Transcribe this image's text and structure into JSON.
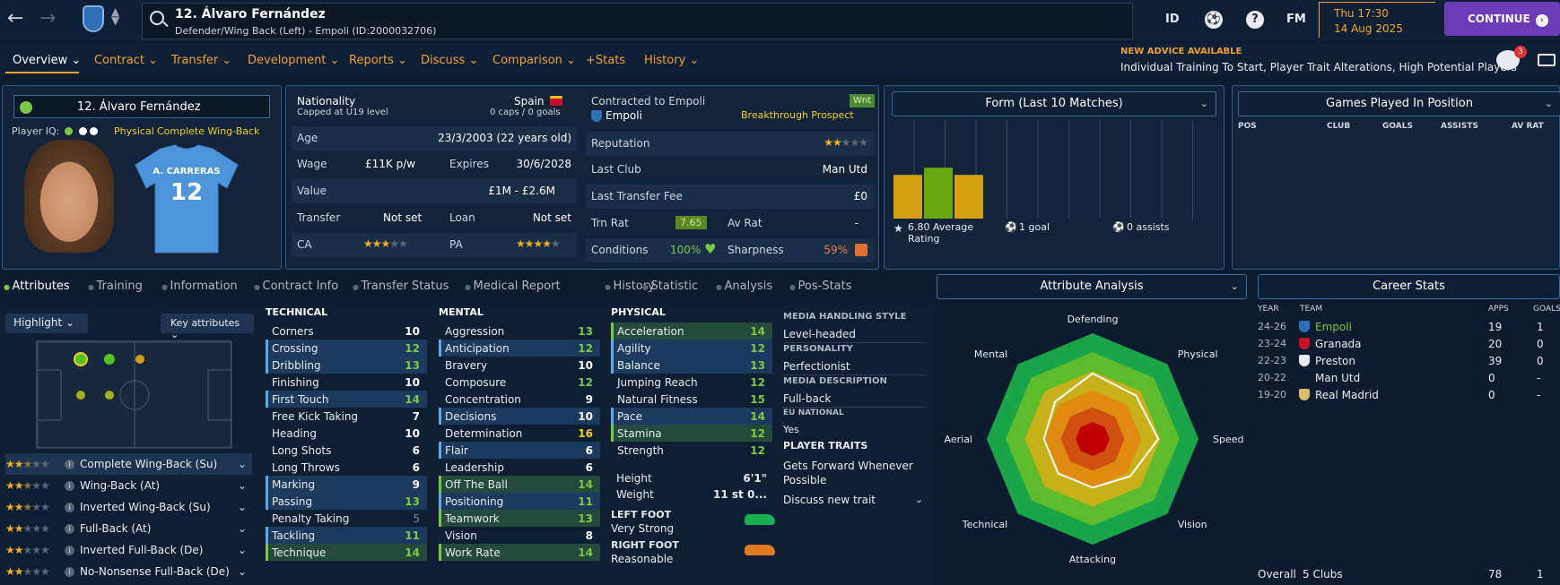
{
  "topbar": {
    "title": "12. Álvaro Fernández",
    "subtitle": "Defender/Wing Back (Left) - Empoli (ID:2000032706)",
    "id_label": "ID",
    "fm_label": "FM",
    "help_label": "?",
    "time": "Thu 17:30",
    "date": "14 Aug 2025",
    "continue_label": "CONTINUE"
  },
  "tabs": [
    "Overview",
    "Contract",
    "Transfer",
    "Development",
    "Reports",
    "Discuss",
    "Comparison",
    "+Stats",
    "History"
  ],
  "advice": {
    "title": "NEW ADVICE AVAILABLE",
    "text": "Individual Training To Start, Player Trait Alterations, High Potential Players",
    "badge": "3"
  },
  "profile": {
    "name": "12. Álvaro Fernández",
    "iq_label": "Player IQ:",
    "role_tag": "Physical",
    "role": "Complete Wing-Back",
    "shirt_name": "A. CARRERAS",
    "shirt_number": "12"
  },
  "info": {
    "nationality_label": "Nationality",
    "nationality": "Spain",
    "caps_note": "Capped at U19 level",
    "caps": "0 caps / 0 goals",
    "contract_label": "Contracted to Empoli",
    "club": "Empoli",
    "status": "Breakthrough Prospect",
    "wnt": "Wnt",
    "age_label": "Age",
    "age": "23/3/2003 (22 years old)",
    "wage_label": "Wage",
    "wage": "£11K p/w",
    "expires_label": "Expires",
    "expires": "30/6/2028",
    "value_label": "Value",
    "value": "£1M - £2.6M",
    "transfer_label": "Transfer",
    "transfer": "Not set",
    "loan_label": "Loan",
    "loan": "Not set",
    "ca_label": "CA",
    "pa_label": "PA",
    "reputation_label": "Reputation",
    "lastclub_label": "Last Club",
    "lastclub": "Man Utd",
    "fee_label": "Last Transfer Fee",
    "fee": "£0",
    "trn_label": "Trn Rat",
    "trn": "7.65",
    "avr_label": "Av Rat",
    "avr": "-",
    "cond_label": "Conditions",
    "cond": "100%",
    "sharp_label": "Sharpness",
    "sharp": "59%"
  },
  "form": {
    "title": "Form (Last 10 Matches)",
    "avg": "6.80 Average Rating",
    "goals": "1 goal",
    "assists": "0 assists",
    "bars": [
      {
        "value": 6.8,
        "color": "#d4a010"
      },
      {
        "value": 7.3,
        "color": "#6aa810"
      },
      {
        "value": 6.8,
        "color": "#d4a010"
      }
    ]
  },
  "gpp": {
    "title": "Games Played In Position",
    "cols": [
      "POS",
      "CLUB",
      "GOALS",
      "ASSISTS",
      "AV RAT"
    ]
  },
  "subtabs": [
    "Attributes",
    "Training",
    "Information",
    "Contract Info",
    "Transfer Status",
    "Medical Report",
    "History",
    "Statistic",
    "Analysis",
    "Pos-Stats"
  ],
  "left": {
    "highlight": "Highlight",
    "key_attrs": "Key attributes",
    "roles": [
      {
        "name": "Complete Wing-Back (Su)",
        "stars": 2.5
      },
      {
        "name": "Wing-Back (At)",
        "stars": 2.5
      },
      {
        "name": "Inverted Wing-Back (Su)",
        "stars": 2.5
      },
      {
        "name": "Full-Back (At)",
        "stars": 2
      },
      {
        "name": "Inverted Full-Back (De)",
        "stars": 2
      },
      {
        "name": "No-Nonsense Full-Back (De)",
        "stars": 2
      }
    ]
  },
  "technical": {
    "title": "TECHNICAL",
    "rows": [
      [
        "Corners",
        "10",
        ""
      ],
      [
        "Crossing",
        "12",
        "b"
      ],
      [
        "Dribbling",
        "13",
        "b"
      ],
      [
        "Finishing",
        "10",
        ""
      ],
      [
        "First Touch",
        "14",
        "b"
      ],
      [
        "Free Kick Taking",
        "7",
        ""
      ],
      [
        "Heading",
        "10",
        ""
      ],
      [
        "Long Shots",
        "6",
        ""
      ],
      [
        "Long Throws",
        "6",
        ""
      ],
      [
        "Marking",
        "9",
        "b"
      ],
      [
        "Passing",
        "13",
        "b"
      ],
      [
        "Penalty Taking",
        "5",
        ""
      ],
      [
        "Tackling",
        "11",
        "b"
      ],
      [
        "Technique",
        "14",
        "g"
      ]
    ]
  },
  "mental": {
    "title": "MENTAL",
    "rows": [
      [
        "Aggression",
        "13",
        ""
      ],
      [
        "Anticipation",
        "12",
        "b"
      ],
      [
        "Bravery",
        "10",
        ""
      ],
      [
        "Composure",
        "12",
        ""
      ],
      [
        "Concentration",
        "9",
        ""
      ],
      [
        "Decisions",
        "10",
        "b"
      ],
      [
        "Determination",
        "16",
        ""
      ],
      [
        "Flair",
        "6",
        "b"
      ],
      [
        "Leadership",
        "6",
        ""
      ],
      [
        "Off The Ball",
        "14",
        "g"
      ],
      [
        "Positioning",
        "11",
        "b"
      ],
      [
        "Teamwork",
        "13",
        "g"
      ],
      [
        "Vision",
        "8",
        ""
      ],
      [
        "Work Rate",
        "14",
        "g"
      ]
    ]
  },
  "physical": {
    "title": "PHYSICAL",
    "rows": [
      [
        "Acceleration",
        "14",
        "g"
      ],
      [
        "Agility",
        "12",
        "b"
      ],
      [
        "Balance",
        "13",
        "b"
      ],
      [
        "Jumping Reach",
        "12",
        ""
      ],
      [
        "Natural Fitness",
        "15",
        ""
      ],
      [
        "Pace",
        "14",
        "b"
      ],
      [
        "Stamina",
        "12",
        "g"
      ],
      [
        "Strength",
        "12",
        ""
      ]
    ],
    "height_label": "Height",
    "height": "6'1\"",
    "weight_label": "Weight",
    "weight": "11 st 0...",
    "lf_label": "LEFT FOOT",
    "lf": "Very Strong",
    "rf_label": "RIGHT FOOT",
    "rf": "Reasonable"
  },
  "media": {
    "style_label": "MEDIA HANDLING STYLE",
    "style": "Level-headed",
    "pers_label": "PERSONALITY",
    "pers": "Perfectionist",
    "desc_label": "MEDIA DESCRIPTION",
    "desc": "Full-back",
    "eu_label": "EU NATIONAL",
    "eu": "Yes",
    "traits_label": "PLAYER TRAITS",
    "trait1": "Gets Forward Whenever Possible",
    "discuss": "Discuss new trait"
  },
  "analysis": {
    "title": "Attribute Analysis",
    "axes": [
      "Defending",
      "Physical",
      "Speed",
      "Vision",
      "Attacking",
      "Technical",
      "Aerial",
      "Mental"
    ],
    "values": [
      0.62,
      0.58,
      0.62,
      0.5,
      0.46,
      0.46,
      0.46,
      0.5
    ]
  },
  "career": {
    "title": "Career Stats",
    "cols": [
      "YEAR",
      "TEAM",
      "APPS",
      "GOALS"
    ],
    "rows": [
      [
        "24-26",
        "Empoli",
        "19",
        "1"
      ],
      [
        "23-24",
        "Granada",
        "20",
        "0"
      ],
      [
        "22-23",
        "Preston",
        "39",
        "0"
      ],
      [
        "20-22",
        "Man Utd",
        "0",
        "-"
      ],
      [
        "19-20",
        "Real Madrid",
        "0",
        "-"
      ]
    ],
    "overall": "Overall",
    "clubs": "5 Clubs",
    "tot_apps": "78",
    "tot_goals": "1"
  }
}
